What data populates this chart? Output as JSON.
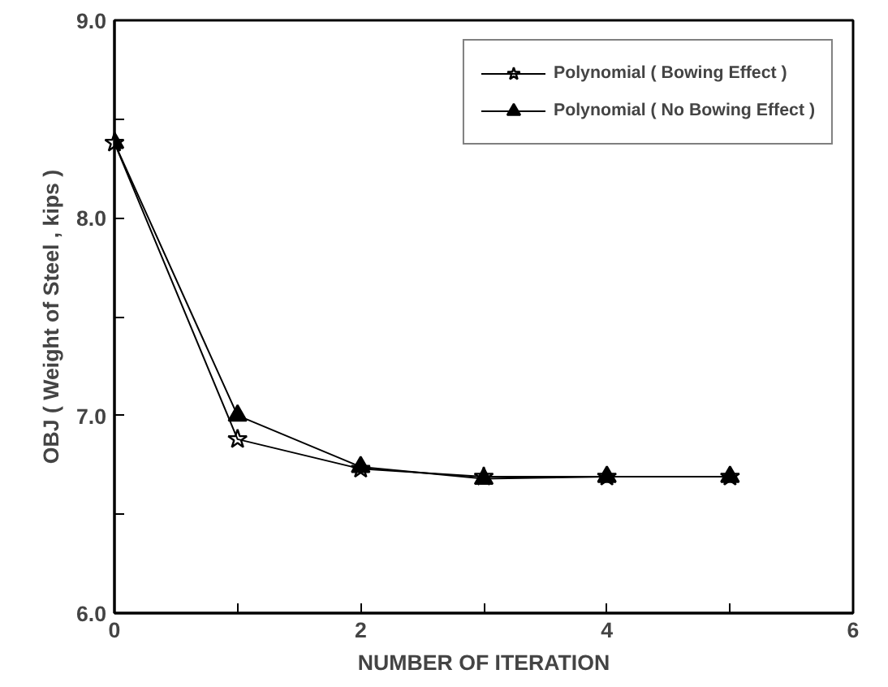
{
  "chart_data": {
    "type": "line",
    "xlabel": "NUMBER OF ITERATION",
    "ylabel": "OBJ ( Weight of Steel , kips )",
    "x": [
      0,
      1,
      2,
      3,
      4,
      5
    ],
    "series": [
      {
        "name": "Polynomial ( Bowing Effect )",
        "color": "#000000",
        "marker": "star",
        "values": [
          8.38,
          6.88,
          6.73,
          6.69,
          6.69,
          6.69
        ]
      },
      {
        "name": "Polynomial ( No Bowing Effect )",
        "color": "#000000",
        "marker": "triangle",
        "values": [
          8.38,
          7.0,
          6.74,
          6.68,
          6.69,
          6.69
        ]
      }
    ],
    "xlim": [
      0,
      6
    ],
    "xticks": [
      0,
      {
        "value": 1,
        "label": null
      },
      2,
      {
        "value": 3,
        "label": null
      },
      4,
      {
        "value": 5,
        "label": null
      },
      6
    ],
    "ylim": [
      6,
      9
    ],
    "yticks": [
      {
        "value": 6,
        "label": "6.0"
      },
      {
        "value": 6.5,
        "label": null
      },
      {
        "value": 7,
        "label": "7.0"
      },
      {
        "value": 7.5,
        "label": null
      },
      {
        "value": 8,
        "label": "8.0"
      },
      {
        "value": 8.5,
        "label": null
      },
      {
        "value": 9,
        "label": "9.0"
      }
    ],
    "grid": false,
    "legend": "top right",
    "line_style": "solid"
  }
}
